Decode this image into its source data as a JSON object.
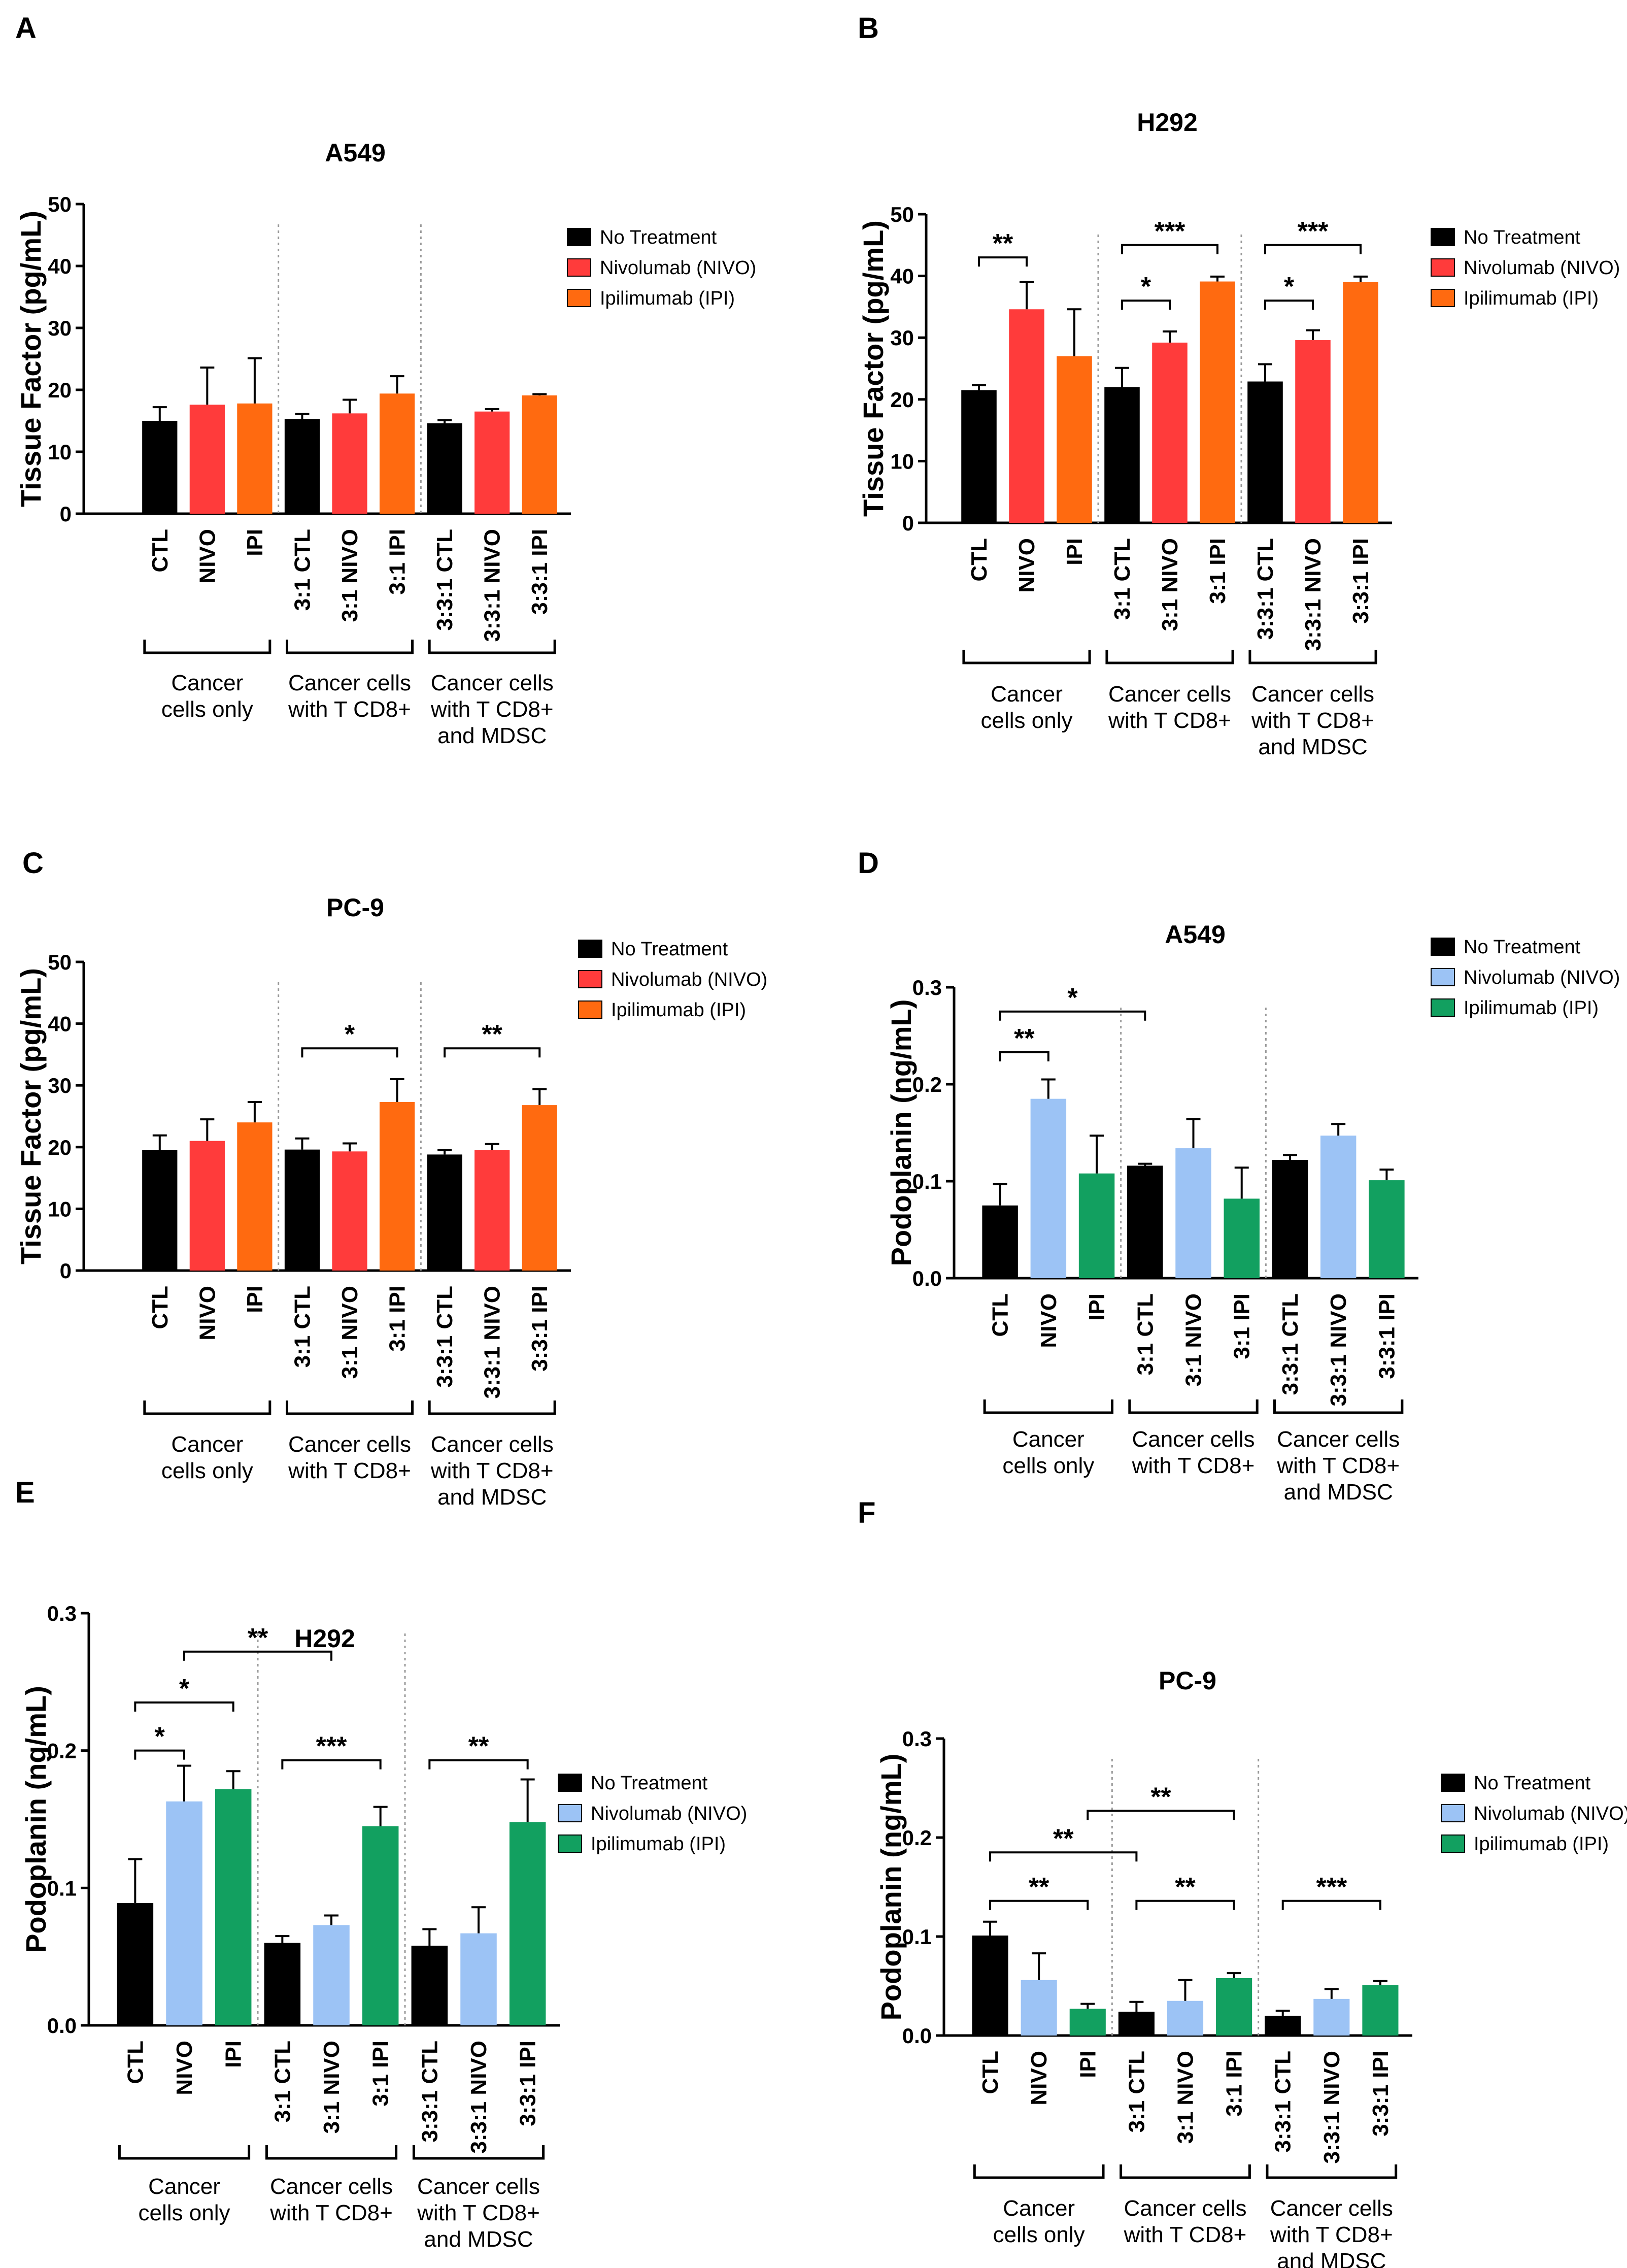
{
  "figure": {
    "background": "#ffffff"
  },
  "chart_data": [
    {
      "panel": "A",
      "type": "bar",
      "title": "A549",
      "ylabel": "Tissue Factor (pg/mL)",
      "ylim": [
        0,
        50
      ],
      "yticks": [
        0,
        10,
        20,
        30,
        40,
        50
      ],
      "categories": [
        "CTL",
        "NIVO",
        "IPI",
        "3:1 CTL",
        "3:1 NIVO",
        "3:1 IPI",
        "3:3:1 CTL",
        "3:3:1 NIVO",
        "3:3:1 IPI"
      ],
      "values": [
        15,
        17.6,
        17.8,
        15.3,
        16.2,
        19.4,
        14.6,
        16.5,
        19.1
      ],
      "errors": [
        2.2,
        6.0,
        7.3,
        0.8,
        2.2,
        2.8,
        0.5,
        0.4,
        0.2
      ],
      "groups": [
        {
          "label_lines": [
            "Cancer",
            "cells only"
          ],
          "from": 0,
          "to": 2
        },
        {
          "label_lines": [
            "Cancer cells",
            "with T CD8+"
          ],
          "from": 3,
          "to": 5
        },
        {
          "label_lines": [
            "Cancer cells",
            "with T CD8+",
            "and MDSC"
          ],
          "from": 6,
          "to": 8
        }
      ],
      "legend": [
        {
          "label": "No Treatment",
          "color": "#000000"
        },
        {
          "label": "Nivolumab (NIVO)",
          "color": "#ff3b3b"
        },
        {
          "label": "Ipilimumab (IPI)",
          "color": "#ff6a10"
        }
      ],
      "significance": []
    },
    {
      "panel": "B",
      "type": "bar",
      "title": "H292",
      "ylabel": "Tissue Factor (pg/mL)",
      "ylim": [
        0,
        50
      ],
      "yticks": [
        0,
        10,
        20,
        30,
        40,
        50
      ],
      "categories": [
        "CTL",
        "NIVO",
        "IPI",
        "3:1 CTL",
        "3:1 NIVO",
        "3:1 IPI",
        "3:3:1 CTL",
        "3:3:1 NIVO",
        "3:3:1 IPI"
      ],
      "values": [
        21.5,
        34.6,
        27,
        22,
        29.2,
        39.1,
        22.9,
        29.6,
        39
      ],
      "errors": [
        0.8,
        4.4,
        7.6,
        3.1,
        1.8,
        0.8,
        2.8,
        1.6,
        0.9
      ],
      "groups": [
        {
          "label_lines": [
            "Cancer",
            "cells only"
          ],
          "from": 0,
          "to": 2
        },
        {
          "label_lines": [
            "Cancer cells",
            "with T CD8+"
          ],
          "from": 3,
          "to": 5
        },
        {
          "label_lines": [
            "Cancer cells",
            "with T CD8+",
            "and MDSC"
          ],
          "from": 6,
          "to": 8
        }
      ],
      "legend": [
        {
          "label": "No Treatment",
          "color": "#000000"
        },
        {
          "label": "Nivolumab (NIVO)",
          "color": "#ff3b3b"
        },
        {
          "label": "Ipilimumab (IPI)",
          "color": "#ff6a10"
        }
      ],
      "significance": [
        {
          "from": 0,
          "to": 1,
          "level": 43,
          "label": "**"
        },
        {
          "from": 3,
          "to": 4,
          "level": 36,
          "label": "*"
        },
        {
          "from": 3,
          "to": 5,
          "level": 45,
          "label": "***"
        },
        {
          "from": 6,
          "to": 7,
          "level": 36,
          "label": "*"
        },
        {
          "from": 6,
          "to": 8,
          "level": 45,
          "label": "***"
        }
      ]
    },
    {
      "panel": "C",
      "type": "bar",
      "title": "PC-9",
      "ylabel": "Tissue Factor (pg/mL)",
      "ylim": [
        0,
        50
      ],
      "yticks": [
        0,
        10,
        20,
        30,
        40,
        50
      ],
      "categories": [
        "CTL",
        "NIVO",
        "IPI",
        "3:1 CTL",
        "3:1 NIVO",
        "3:1 IPI",
        "3:3:1 CTL",
        "3:3:1 NIVO",
        "3:3:1 IPI"
      ],
      "values": [
        19.5,
        21,
        24,
        19.6,
        19.3,
        27.3,
        18.8,
        19.5,
        26.8
      ],
      "errors": [
        2.4,
        3.5,
        3.3,
        1.8,
        1.3,
        3.7,
        0.7,
        1.0,
        2.6
      ],
      "groups": [
        {
          "label_lines": [
            "Cancer",
            "cells only"
          ],
          "from": 0,
          "to": 2
        },
        {
          "label_lines": [
            "Cancer cells",
            "with T CD8+"
          ],
          "from": 3,
          "to": 5
        },
        {
          "label_lines": [
            "Cancer cells",
            "with T CD8+",
            "and MDSC"
          ],
          "from": 6,
          "to": 8
        }
      ],
      "legend": [
        {
          "label": "No Treatment",
          "color": "#000000"
        },
        {
          "label": "Nivolumab (NIVO)",
          "color": "#ff3b3b"
        },
        {
          "label": "Ipilimumab (IPI)",
          "color": "#ff6a10"
        }
      ],
      "significance": [
        {
          "from": 3,
          "to": 5,
          "level": 36,
          "label": "*"
        },
        {
          "from": 6,
          "to": 8,
          "level": 36,
          "label": "**"
        }
      ]
    },
    {
      "panel": "D",
      "type": "bar",
      "title": "A549",
      "ylabel": "Podoplanin (ng/mL)",
      "ylim": [
        0,
        0.3
      ],
      "yticks": [
        0.0,
        0.1,
        0.2,
        0.3
      ],
      "tick_decimals": 1,
      "categories": [
        "CTL",
        "NIVO",
        "IPI",
        "3:1 CTL",
        "3:1 NIVO",
        "3:1 IPI",
        "3:3:1 CTL",
        "3:3:1 NIVO",
        "3:3:1 IPI"
      ],
      "values": [
        0.075,
        0.185,
        0.108,
        0.116,
        0.134,
        0.082,
        0.122,
        0.147,
        0.101
      ],
      "errors": [
        0.022,
        0.02,
        0.039,
        0.002,
        0.03,
        0.032,
        0.005,
        0.012,
        0.011
      ],
      "groups": [
        {
          "label_lines": [
            "Cancer",
            "cells only"
          ],
          "from": 0,
          "to": 2
        },
        {
          "label_lines": [
            "Cancer cells",
            "with T CD8+"
          ],
          "from": 3,
          "to": 5
        },
        {
          "label_lines": [
            "Cancer cells",
            "with T CD8+",
            "and MDSC"
          ],
          "from": 6,
          "to": 8
        }
      ],
      "legend": [
        {
          "label": "No Treatment",
          "color": "#000000"
        },
        {
          "label": "Nivolumab (NIVO)",
          "color": "#9cc3f5"
        },
        {
          "label": "Ipilimumab (IPI)",
          "color": "#12a060"
        }
      ],
      "significance": [
        {
          "from": 0,
          "to": 1,
          "level": 0.233,
          "label": "**"
        },
        {
          "from": 0,
          "to": 3,
          "level": 0.275,
          "label": "*"
        }
      ]
    },
    {
      "panel": "E",
      "type": "bar",
      "title": "H292",
      "ylabel": "Podoplanin (ng/mL)",
      "ylim": [
        0,
        0.3
      ],
      "yticks": [
        0.0,
        0.1,
        0.2,
        0.3
      ],
      "tick_decimals": 1,
      "categories": [
        "CTL",
        "NIVO",
        "IPI",
        "3:1 CTL",
        "3:1 NIVO",
        "3:1 IPI",
        "3:3:1 CTL",
        "3:3:1 NIVO",
        "3:3:1 IPI"
      ],
      "values": [
        0.089,
        0.163,
        0.172,
        0.06,
        0.073,
        0.145,
        0.058,
        0.067,
        0.148
      ],
      "errors": [
        0.032,
        0.026,
        0.013,
        0.005,
        0.007,
        0.014,
        0.012,
        0.019,
        0.031
      ],
      "groups": [
        {
          "label_lines": [
            "Cancer",
            "cells only"
          ],
          "from": 0,
          "to": 2
        },
        {
          "label_lines": [
            "Cancer cells",
            "with T CD8+"
          ],
          "from": 3,
          "to": 5
        },
        {
          "label_lines": [
            "Cancer cells",
            "with T CD8+",
            "and MDSC"
          ],
          "from": 6,
          "to": 8
        }
      ],
      "legend": [
        {
          "label": "No Treatment",
          "color": "#000000"
        },
        {
          "label": "Nivolumab (NIVO)",
          "color": "#9cc3f5"
        },
        {
          "label": "Ipilimumab (IPI)",
          "color": "#12a060"
        }
      ],
      "significance": [
        {
          "from": 0,
          "to": 1,
          "level": 0.2,
          "label": "*"
        },
        {
          "from": 0,
          "to": 2,
          "level": 0.235,
          "label": "*"
        },
        {
          "from": 1,
          "to": 4,
          "level": 0.272,
          "label": "**"
        },
        {
          "from": 3,
          "to": 5,
          "level": 0.193,
          "label": "***"
        },
        {
          "from": 6,
          "to": 8,
          "level": 0.193,
          "label": "**"
        }
      ]
    },
    {
      "panel": "F",
      "type": "bar",
      "title": "PC-9",
      "ylabel": "Podoplanin (ng/mL)",
      "ylim": [
        0,
        0.3
      ],
      "yticks": [
        0.0,
        0.1,
        0.2,
        0.3
      ],
      "tick_decimals": 1,
      "categories": [
        "CTL",
        "NIVO",
        "IPI",
        "3:1 CTL",
        "3:1 NIVO",
        "3:1 IPI",
        "3:3:1 CTL",
        "3:3:1 NIVO",
        "3:3:1 IPI"
      ],
      "values": [
        0.101,
        0.056,
        0.027,
        0.024,
        0.035,
        0.058,
        0.02,
        0.037,
        0.051
      ],
      "errors": [
        0.014,
        0.027,
        0.005,
        0.01,
        0.021,
        0.005,
        0.005,
        0.01,
        0.004
      ],
      "groups": [
        {
          "label_lines": [
            "Cancer",
            "cells only"
          ],
          "from": 0,
          "to": 2
        },
        {
          "label_lines": [
            "Cancer cells",
            "with T CD8+"
          ],
          "from": 3,
          "to": 5
        },
        {
          "label_lines": [
            "Cancer cells",
            "with T CD8+",
            "and MDSC"
          ],
          "from": 6,
          "to": 8
        }
      ],
      "legend": [
        {
          "label": "No Treatment",
          "color": "#000000"
        },
        {
          "label": "Nivolumab (NIVO)",
          "color": "#9cc3f5"
        },
        {
          "label": "Ipilimumab (IPI)",
          "color": "#12a060"
        }
      ],
      "significance": [
        {
          "from": 0,
          "to": 2,
          "level": 0.136,
          "label": "**"
        },
        {
          "from": 0,
          "to": 3,
          "level": 0.185,
          "label": "**"
        },
        {
          "from": 2,
          "to": 5,
          "level": 0.227,
          "label": "**"
        },
        {
          "from": 3,
          "to": 5,
          "level": 0.136,
          "label": "**"
        },
        {
          "from": 6,
          "to": 8,
          "level": 0.136,
          "label": "***"
        }
      ]
    }
  ]
}
